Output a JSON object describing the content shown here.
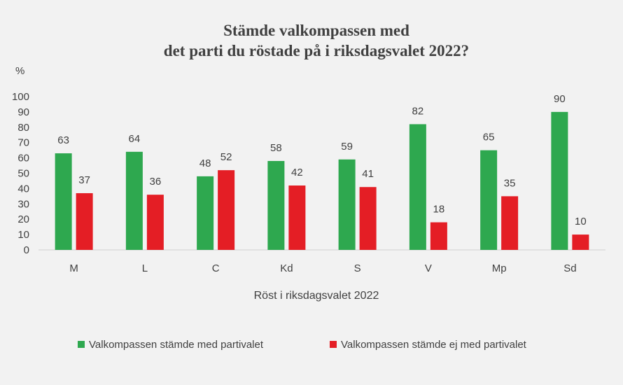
{
  "chart_data": {
    "type": "bar",
    "title_lines": [
      "Stämde valkompassen med",
      "det parti du röstade på i riksdagsvalet 2022?"
    ],
    "ylabel": "%",
    "xlabel": "Röst i riksdagsvalet 2022",
    "ylim": [
      0,
      100
    ],
    "yticks": [
      0,
      10,
      20,
      30,
      40,
      50,
      60,
      70,
      80,
      90,
      100
    ],
    "categories": [
      "M",
      "L",
      "C",
      "Kd",
      "S",
      "V",
      "Mp",
      "Sd"
    ],
    "series": [
      {
        "name": "Valkompassen stämde med partivalet",
        "color": "#2ea84f",
        "values": [
          63,
          64,
          48,
          58,
          59,
          82,
          65,
          90
        ]
      },
      {
        "name": "Valkompassen stämde ej med partivalet",
        "color": "#e41e25",
        "values": [
          37,
          36,
          52,
          42,
          41,
          18,
          35,
          10
        ]
      }
    ],
    "grid": false,
    "legend_position": "bottom"
  }
}
